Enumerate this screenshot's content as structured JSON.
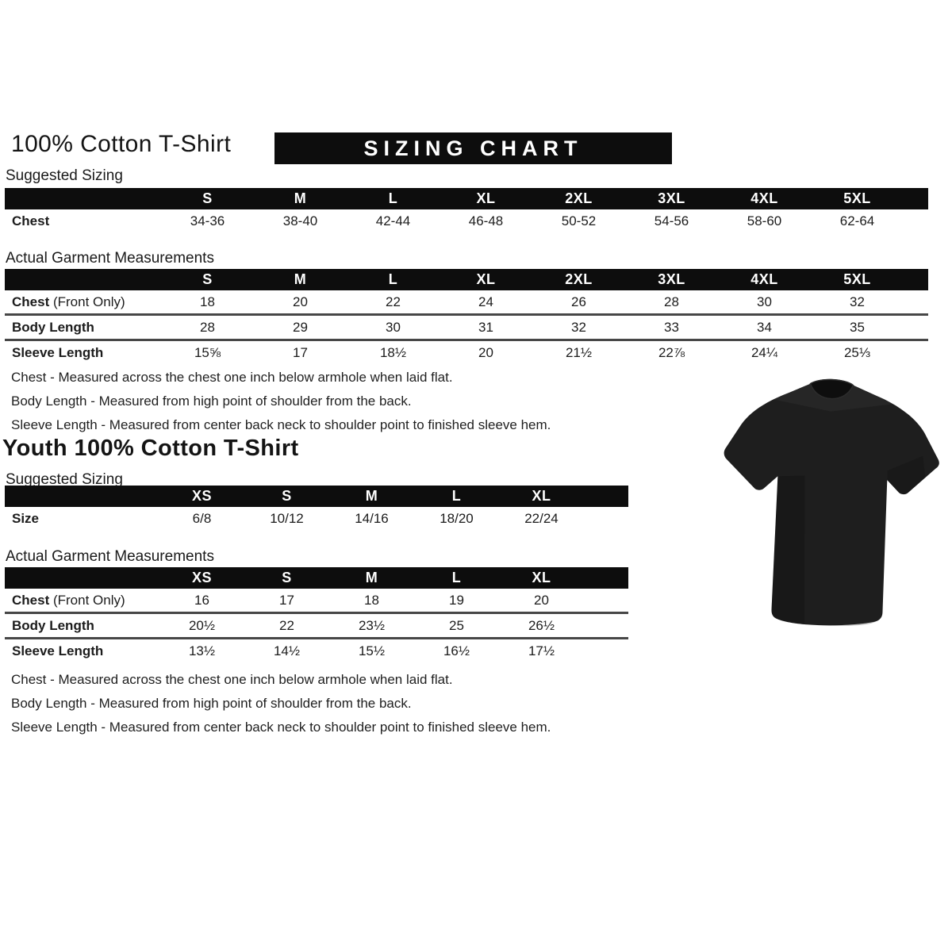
{
  "adult": {
    "title": "100% Cotton T-Shirt",
    "banner": "SIZING CHART",
    "suggested_label": "Suggested Sizing",
    "measurements_label": "Actual Garment Measurements",
    "suggested_table": {
      "headers": [
        "S",
        "M",
        "L",
        "XL",
        "2XL",
        "3XL",
        "4XL",
        "5XL"
      ],
      "rows": [
        {
          "label": "Chest",
          "suffix": "",
          "values": [
            "34-36",
            "38-40",
            "42-44",
            "46-48",
            "50-52",
            "54-56",
            "58-60",
            "62-64"
          ]
        }
      ]
    },
    "measurements_table": {
      "headers": [
        "S",
        "M",
        "L",
        "XL",
        "2XL",
        "3XL",
        "4XL",
        "5XL"
      ],
      "rows": [
        {
          "label": "Chest",
          "suffix": " (Front Only)",
          "values": [
            "18",
            "20",
            "22",
            "24",
            "26",
            "28",
            "30",
            "32"
          ]
        },
        {
          "label": "Body Length",
          "suffix": "",
          "values": [
            "28",
            "29",
            "30",
            "31",
            "32",
            "33",
            "34",
            "35"
          ]
        },
        {
          "label": "Sleeve Length",
          "suffix": "",
          "values": [
            "15⅝",
            "17",
            "18½",
            "20",
            "21½",
            "22⅞",
            "24¼",
            "25⅓"
          ]
        }
      ]
    },
    "notes": [
      "Chest - Measured across the chest one inch below armhole when laid flat.",
      "Body Length - Measured from high point of shoulder from the back.",
      "Sleeve Length - Measured from center back neck to shoulder point to finished sleeve hem."
    ]
  },
  "youth": {
    "title": "Youth 100% Cotton T-Shirt",
    "suggested_label": "Suggested Sizing",
    "measurements_label": "Actual Garment Measurements",
    "suggested_table": {
      "headers": [
        "XS",
        "S",
        "M",
        "L",
        "XL"
      ],
      "rows": [
        {
          "label": "Size",
          "suffix": "",
          "values": [
            "6/8",
            "10/12",
            "14/16",
            "18/20",
            "22/24"
          ]
        }
      ]
    },
    "measurements_table": {
      "headers": [
        "XS",
        "S",
        "M",
        "L",
        "XL"
      ],
      "rows": [
        {
          "label": "Chest",
          "suffix": " (Front Only)",
          "values": [
            "16",
            "17",
            "18",
            "19",
            "20"
          ]
        },
        {
          "label": "Body Length",
          "suffix": "",
          "values": [
            "20½",
            "22",
            "23½",
            "25",
            "26½"
          ]
        },
        {
          "label": "Sleeve Length",
          "suffix": "",
          "values": [
            "13½",
            "14½",
            "15½",
            "16½",
            "17½"
          ]
        }
      ]
    },
    "notes": [
      "Chest - Measured across the chest one inch below armhole when laid flat.",
      "Body Length - Measured from high point of shoulder from the back.",
      "Sleeve Length - Measured from center back neck to shoulder point to finished sleeve hem."
    ]
  },
  "image": {
    "name": "black-crewneck-tshirt-photo",
    "shirt_color": "#1e1e1e",
    "collar_color": "#0e0e0e"
  },
  "colors": {
    "header_bar": "#0d0d0d",
    "row_border": "#474747",
    "text": "#1a1a1a"
  }
}
